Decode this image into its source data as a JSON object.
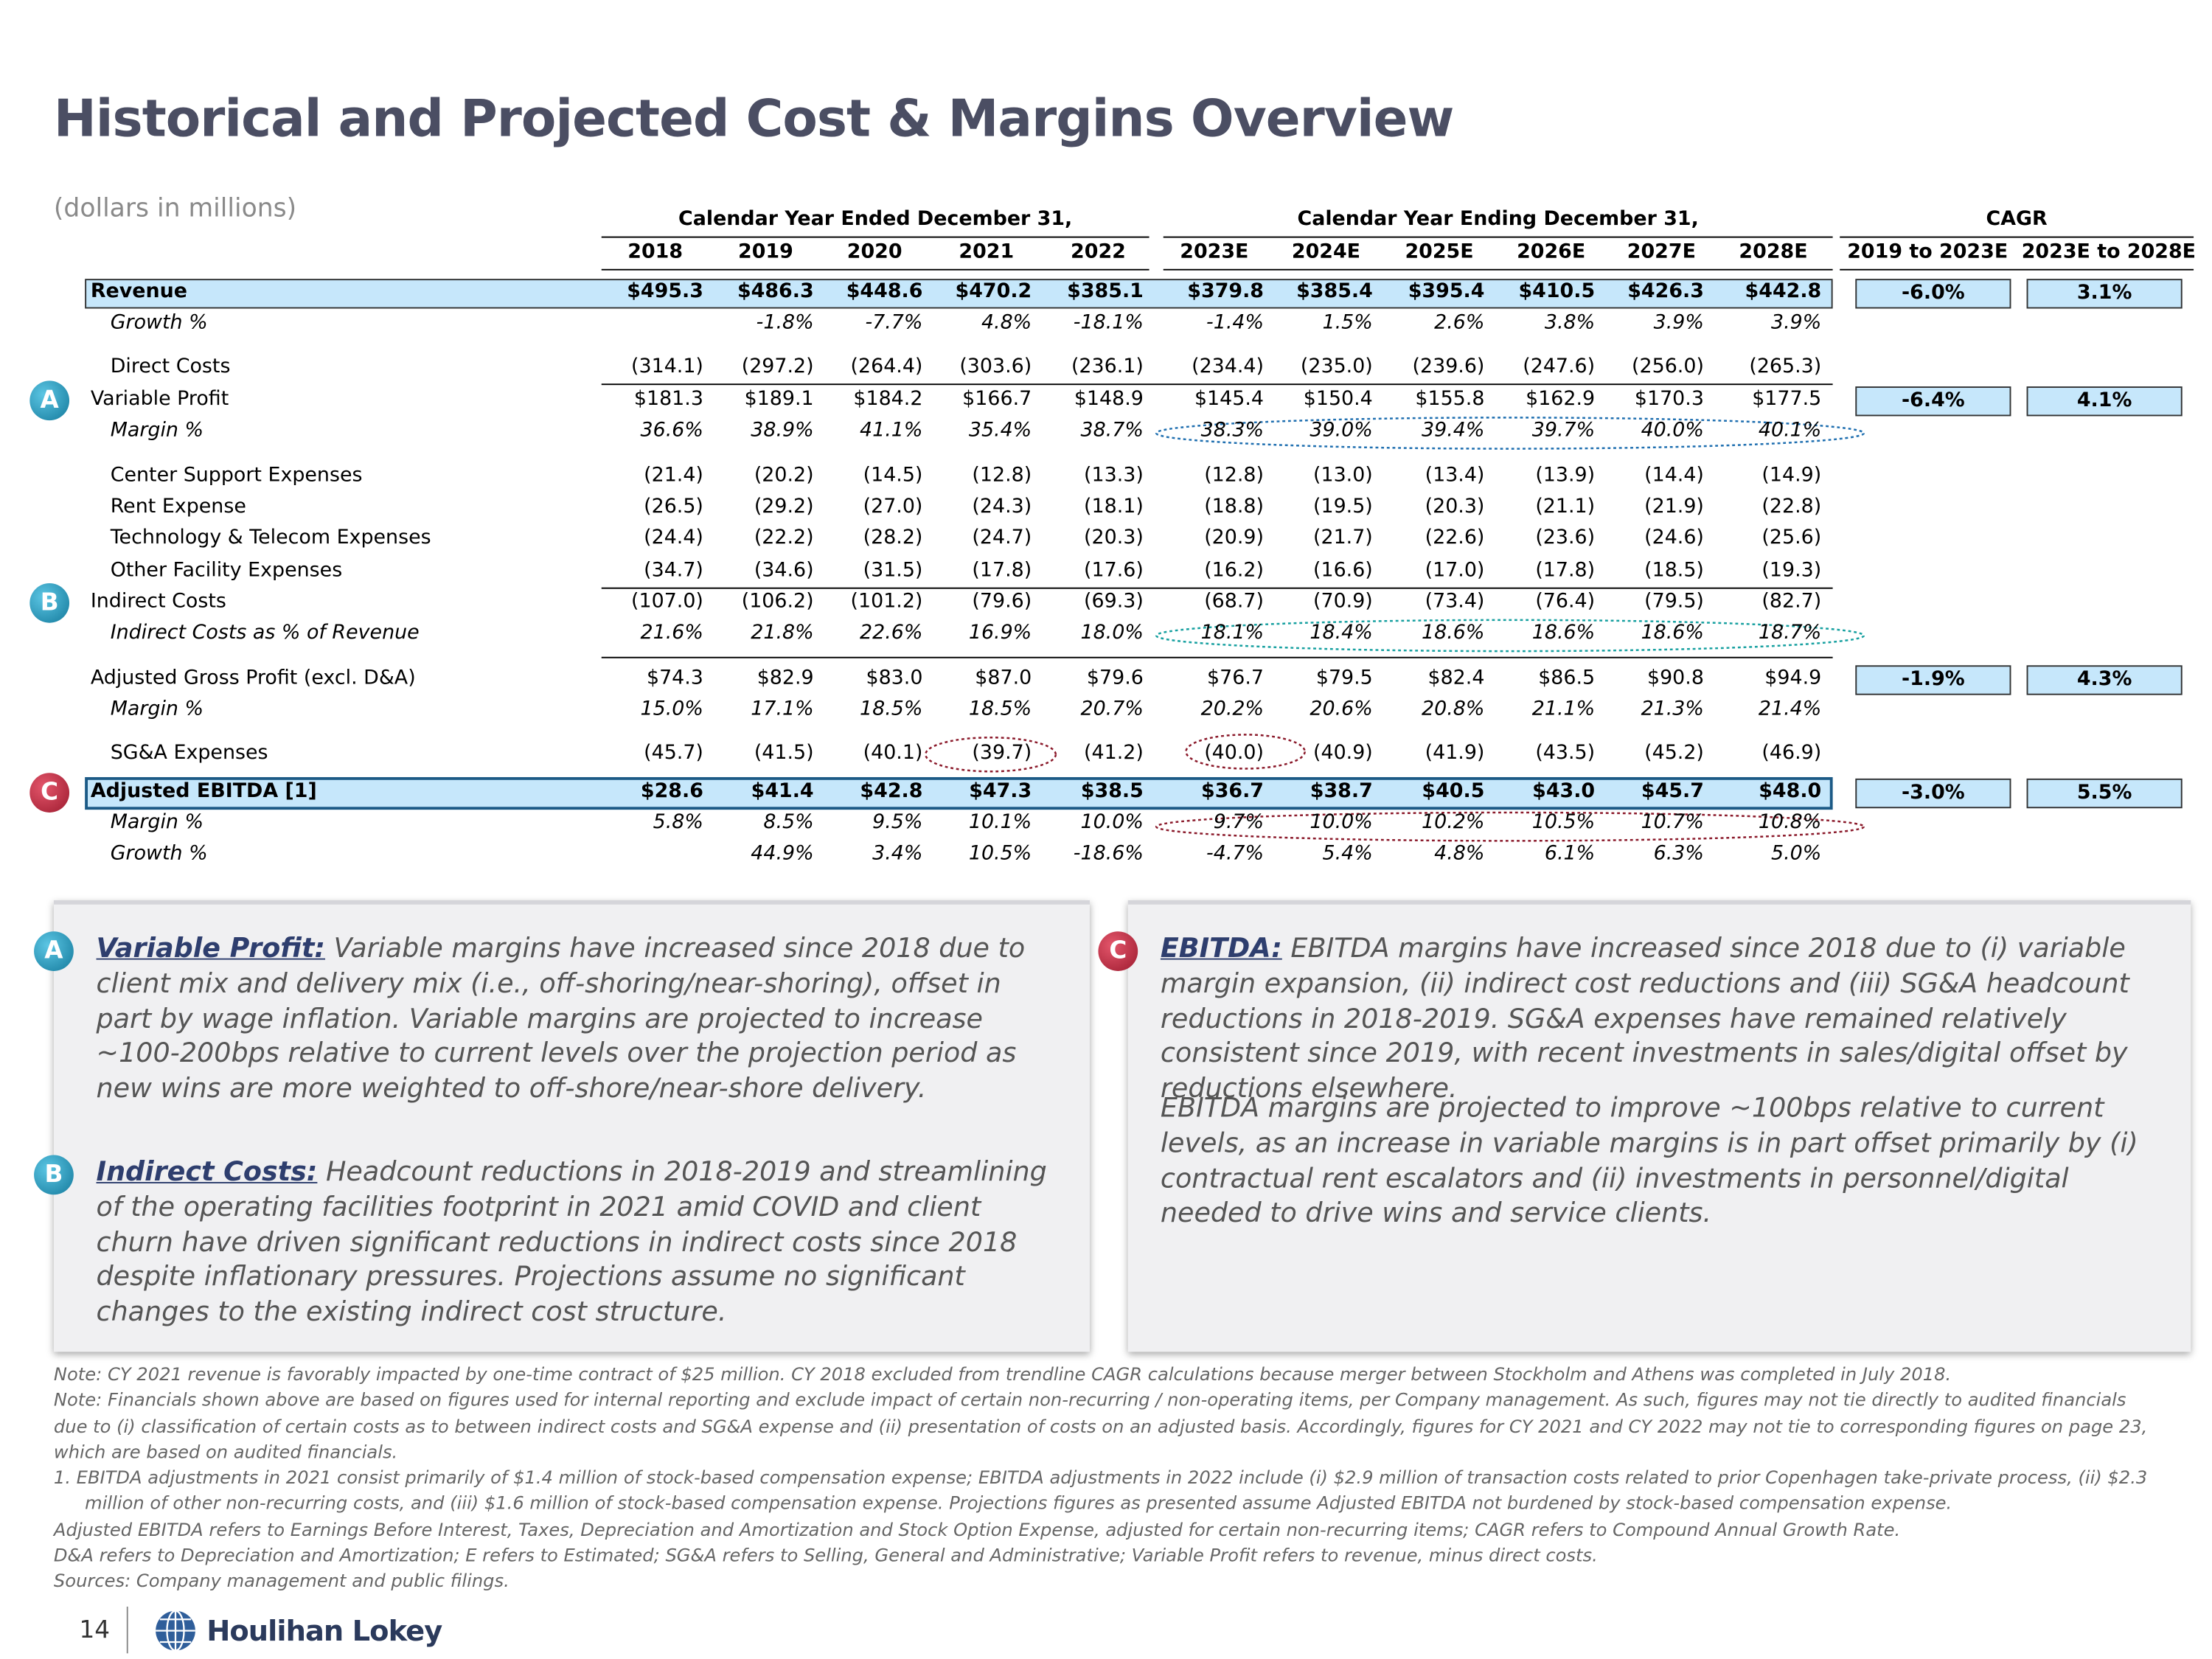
{
  "header": {
    "title": "Historical and Projected Cost & Margins Overview",
    "subtitle": "(dollars in millions)"
  },
  "table": {
    "group_headers": [
      "Calendar Year Ended December 31,",
      "Calendar Year Ending December 31,",
      "CAGR"
    ],
    "columns": [
      "2018",
      "2019",
      "2020",
      "2021",
      "2022",
      "2023E",
      "2024E",
      "2025E",
      "2026E",
      "2027E",
      "2028E"
    ],
    "cagr_columns": [
      "2019 to 2023E",
      "2023E to 2028E"
    ],
    "rows": [
      {
        "label": "Revenue",
        "values": [
          "$495.3",
          "$486.3",
          "$448.6",
          "$470.2",
          "$385.1",
          "$379.8",
          "$385.4",
          "$395.4",
          "$410.5",
          "$426.3",
          "$442.8"
        ],
        "cagr": [
          "-6.0%",
          "3.1%"
        ]
      },
      {
        "label": "Growth %",
        "values": [
          null,
          "-1.8%",
          "-7.7%",
          "4.8%",
          "-18.1%",
          "-1.4%",
          "1.5%",
          "2.6%",
          "3.8%",
          "3.9%",
          "3.9%"
        ]
      },
      {
        "label": "Direct Costs",
        "values": [
          "(314.1)",
          "(297.2)",
          "(264.4)",
          "(303.6)",
          "(236.1)",
          "(234.4)",
          "(235.0)",
          "(239.6)",
          "(247.6)",
          "(256.0)",
          "(265.3)"
        ]
      },
      {
        "label": "Variable Profit",
        "badge": "A",
        "values": [
          "$181.3",
          "$189.1",
          "$184.2",
          "$166.7",
          "$148.9",
          "$145.4",
          "$150.4",
          "$155.8",
          "$162.9",
          "$170.3",
          "$177.5"
        ],
        "cagr": [
          "-6.4%",
          "4.1%"
        ]
      },
      {
        "label": "Margin %",
        "values": [
          "36.6%",
          "38.9%",
          "41.1%",
          "35.4%",
          "38.7%",
          "38.3%",
          "39.0%",
          "39.4%",
          "39.7%",
          "40.0%",
          "40.1%"
        ]
      },
      {
        "label": "Center Support Expenses",
        "values": [
          "(21.4)",
          "(20.2)",
          "(14.5)",
          "(12.8)",
          "(13.3)",
          "(12.8)",
          "(13.0)",
          "(13.4)",
          "(13.9)",
          "(14.4)",
          "(14.9)"
        ]
      },
      {
        "label": "Rent Expense",
        "values": [
          "(26.5)",
          "(29.2)",
          "(27.0)",
          "(24.3)",
          "(18.1)",
          "(18.8)",
          "(19.5)",
          "(20.3)",
          "(21.1)",
          "(21.9)",
          "(22.8)"
        ]
      },
      {
        "label": "Technology & Telecom Expenses",
        "values": [
          "(24.4)",
          "(22.2)",
          "(28.2)",
          "(24.7)",
          "(20.3)",
          "(20.9)",
          "(21.7)",
          "(22.6)",
          "(23.6)",
          "(24.6)",
          "(25.6)"
        ]
      },
      {
        "label": "Other Facility Expenses",
        "values": [
          "(34.7)",
          "(34.6)",
          "(31.5)",
          "(17.8)",
          "(17.6)",
          "(16.2)",
          "(16.6)",
          "(17.0)",
          "(17.8)",
          "(18.5)",
          "(19.3)"
        ]
      },
      {
        "label": "Indirect Costs",
        "badge": "B",
        "values": [
          "(107.0)",
          "(106.2)",
          "(101.2)",
          "(79.6)",
          "(69.3)",
          "(68.7)",
          "(70.9)",
          "(73.4)",
          "(76.4)",
          "(79.5)",
          "(82.7)"
        ]
      },
      {
        "label": "Indirect Costs as % of Revenue",
        "values": [
          "21.6%",
          "21.8%",
          "22.6%",
          "16.9%",
          "18.0%",
          "18.1%",
          "18.4%",
          "18.6%",
          "18.6%",
          "18.6%",
          "18.7%"
        ]
      },
      {
        "label": "Adjusted Gross Profit (excl. D&A)",
        "values": [
          "$74.3",
          "$82.9",
          "$83.0",
          "$87.0",
          "$79.6",
          "$76.7",
          "$79.5",
          "$82.4",
          "$86.5",
          "$90.8",
          "$94.9"
        ],
        "cagr": [
          "-1.9%",
          "4.3%"
        ]
      },
      {
        "label": "Margin %",
        "values": [
          "15.0%",
          "17.1%",
          "18.5%",
          "18.5%",
          "20.7%",
          "20.2%",
          "20.6%",
          "20.8%",
          "21.1%",
          "21.3%",
          "21.4%"
        ]
      },
      {
        "label": "SG&A Expenses",
        "values": [
          "(45.7)",
          "(41.5)",
          "(40.1)",
          "(39.7)",
          "(41.2)",
          "(40.0)",
          "(40.9)",
          "(41.9)",
          "(43.5)",
          "(45.2)",
          "(46.9)"
        ]
      },
      {
        "label": "Adjusted EBITDA [1]",
        "badge": "C",
        "values": [
          "$28.6",
          "$41.4",
          "$42.8",
          "$47.3",
          "$38.5",
          "$36.7",
          "$38.7",
          "$40.5",
          "$43.0",
          "$45.7",
          "$48.0"
        ],
        "cagr": [
          "-3.0%",
          "5.5%"
        ]
      },
      {
        "label": "Margin %",
        "values": [
          "5.8%",
          "8.5%",
          "9.5%",
          "10.1%",
          "10.0%",
          "9.7%",
          "10.0%",
          "10.2%",
          "10.5%",
          "10.7%",
          "10.8%"
        ]
      },
      {
        "label": "Growth %",
        "values": [
          null,
          "44.9%",
          "3.4%",
          "10.5%",
          "-18.6%",
          "-4.7%",
          "5.4%",
          "4.8%",
          "6.1%",
          "6.3%",
          "5.0%"
        ]
      }
    ]
  },
  "callouts": [
    {
      "badge": "A",
      "heading": "Variable Profit:",
      "paragraphs": [
        "Variable margins have increased since 2018 due to client mix and delivery mix (i.e., off-shoring/near-shoring), offset in part by wage inflation. Variable margins are projected to increase ~100-200bps relative to current levels over the projection period as new wins are more weighted to off-shore/near-shore delivery."
      ]
    },
    {
      "badge": "B",
      "heading": "Indirect Costs:",
      "paragraphs": [
        "Headcount reductions in 2018-2019 and streamlining of the operating facilities footprint in 2021 amid COVID and client churn have driven significant reductions in indirect costs since 2018 despite inflationary pressures.  Projections assume no significant changes to the existing indirect cost structure."
      ]
    },
    {
      "badge": "C",
      "heading": "EBITDA:",
      "paragraphs": [
        "EBITDA margins have increased since 2018 due to (i) variable margin expansion, (ii) indirect cost reductions and (iii) SG&A headcount reductions in 2018-2019. SG&A expenses have remained relatively consistent since 2019, with recent investments in sales/digital offset by reductions elsewhere.",
        "EBITDA margins are projected to improve ~100bps relative to current levels, as an increase in variable margins is in part offset primarily by (i) contractual rent escalators and (ii) investments in personnel/digital needed to drive wins and service clients."
      ]
    }
  ],
  "notes": [
    "Note: CY 2021 revenue is favorably impacted by one-time contract of $25 million.  CY 2018 excluded from trendline CAGR calculations because merger between Stockholm and Athens was completed in July 2018.",
    "Note: Financials shown above are based on figures used for internal reporting and exclude impact of certain non-recurring / non-operating items, per Company management. As such, figures may not tie directly to audited financials due to (i) classification of certain costs as to between indirect costs and SG&A expense and (ii) presentation of costs on an adjusted basis. Accordingly, figures for CY 2021 and CY 2022 may not tie to corresponding figures on page 23, which are based on audited financials.",
    "1.  EBITDA adjustments in 2021 consist primarily of $1.4 million of stock-based compensation expense; EBITDA adjustments in 2022 include (i) $2.9 million of transaction costs related to prior Copenhagen take-private process, (ii) $2.3 million of other non-recurring costs, and (iii) $1.6 million of stock-based compensation expense. Projections figures as presented assume Adjusted EBITDA not burdened by stock-based compensation expense.",
    "Adjusted EBITDA refers to Earnings Before Interest, Taxes, Depreciation and Amortization and Stock Option Expense, adjusted for certain non-recurring items; CAGR refers to Compound Annual Growth Rate.",
    "D&A refers to Depreciation and Amortization; E refers to Estimated; SG&A refers to Selling, General and Administrative; Variable Profit refers to revenue, minus direct costs.",
    "Sources: Company management and public filings."
  ],
  "footer": {
    "page": "14",
    "brand": "Houlihan Lokey"
  }
}
